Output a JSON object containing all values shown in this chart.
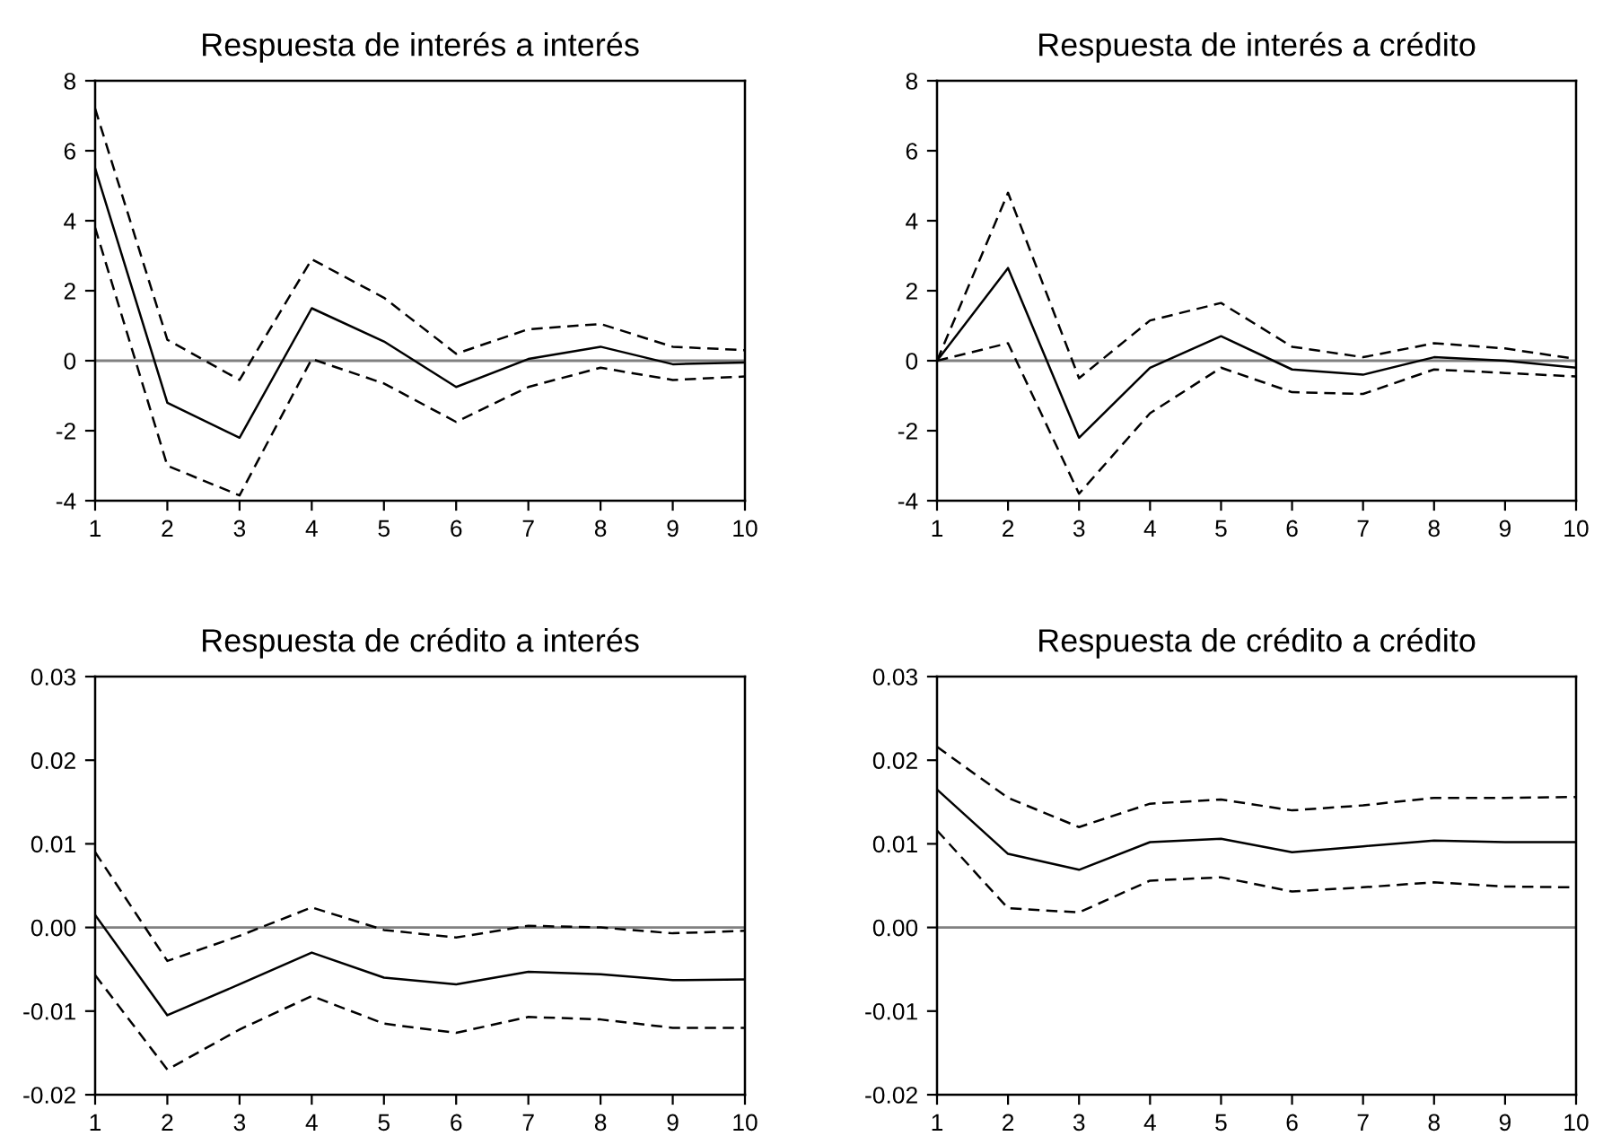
{
  "chart_data": [
    {
      "type": "line",
      "title": "Respuesta de interés a interés",
      "x": [
        1,
        2,
        3,
        4,
        5,
        6,
        7,
        8,
        9,
        10
      ],
      "xlim": [
        1,
        10
      ],
      "xticks": [
        1,
        2,
        3,
        4,
        5,
        6,
        7,
        8,
        9,
        10
      ],
      "ylim": [
        -4,
        8
      ],
      "yticks": [
        -4,
        -2,
        0,
        2,
        4,
        6,
        8
      ],
      "grid": false,
      "legend": false,
      "ref_lines": [
        {
          "axis": "y",
          "value": 0,
          "color": "#808080"
        }
      ],
      "series": [
        {
          "color": "#000000",
          "line_style": "solid",
          "values": [
            5.5,
            -1.2,
            -2.2,
            1.5,
            0.55,
            -0.75,
            0.05,
            0.4,
            -0.1,
            -0.05
          ]
        },
        {
          "color": "#000000",
          "line_style": "dashed",
          "values": [
            7.2,
            0.6,
            -0.55,
            2.9,
            1.8,
            0.2,
            0.9,
            1.05,
            0.4,
            0.3
          ]
        },
        {
          "color": "#000000",
          "line_style": "dashed",
          "values": [
            3.8,
            -3.0,
            -3.85,
            0.05,
            -0.65,
            -1.75,
            -0.75,
            -0.2,
            -0.55,
            -0.45
          ]
        }
      ]
    },
    {
      "type": "line",
      "title": "Respuesta de interés a crédito",
      "x": [
        1,
        2,
        3,
        4,
        5,
        6,
        7,
        8,
        9,
        10
      ],
      "xlim": [
        1,
        10
      ],
      "xticks": [
        1,
        2,
        3,
        4,
        5,
        6,
        7,
        8,
        9,
        10
      ],
      "ylim": [
        -4,
        8
      ],
      "yticks": [
        -4,
        -2,
        0,
        2,
        4,
        6,
        8
      ],
      "grid": false,
      "legend": false,
      "ref_lines": [
        {
          "axis": "y",
          "value": 0,
          "color": "#808080"
        }
      ],
      "series": [
        {
          "color": "#000000",
          "line_style": "solid",
          "values": [
            0,
            2.65,
            -2.2,
            -0.2,
            0.7,
            -0.25,
            -0.4,
            0.1,
            0,
            -0.2
          ]
        },
        {
          "color": "#000000",
          "line_style": "dashed",
          "values": [
            0,
            4.8,
            -0.5,
            1.15,
            1.65,
            0.4,
            0.1,
            0.5,
            0.35,
            0.05
          ]
        },
        {
          "color": "#000000",
          "line_style": "dashed",
          "values": [
            0,
            0.5,
            -3.8,
            -1.5,
            -0.2,
            -0.9,
            -0.95,
            -0.25,
            -0.35,
            -0.45
          ]
        }
      ]
    },
    {
      "type": "line",
      "title": "Respuesta de crédito a interés",
      "x": [
        1,
        2,
        3,
        4,
        5,
        6,
        7,
        8,
        9,
        10
      ],
      "xlim": [
        1,
        10
      ],
      "xticks": [
        1,
        2,
        3,
        4,
        5,
        6,
        7,
        8,
        9,
        10
      ],
      "ylim": [
        -0.02,
        0.03
      ],
      "yticks": [
        {
          "value": -0.02,
          "label": "-0.02"
        },
        {
          "value": -0.01,
          "label": "-0.01"
        },
        {
          "value": 0,
          "label": "0.00"
        },
        {
          "value": 0.01,
          "label": "0.01"
        },
        {
          "value": 0.02,
          "label": "0.02"
        },
        {
          "value": 0.03,
          "label": "0.03"
        }
      ],
      "grid": false,
      "legend": false,
      "ref_lines": [
        {
          "axis": "y",
          "value": 0,
          "color": "#808080"
        }
      ],
      "series": [
        {
          "color": "#000000",
          "line_style": "solid",
          "values": [
            0.0015,
            -0.0105,
            -0.0068,
            -0.003,
            -0.006,
            -0.0068,
            -0.0053,
            -0.0056,
            -0.0063,
            -0.0062
          ]
        },
        {
          "color": "#000000",
          "line_style": "dashed",
          "values": [
            0.009,
            -0.004,
            -0.001,
            0.0024,
            -0.0003,
            -0.0012,
            0.0002,
            0,
            -0.0007,
            -0.0004
          ]
        },
        {
          "color": "#000000",
          "line_style": "dashed",
          "values": [
            -0.0057,
            -0.017,
            -0.0122,
            -0.0082,
            -0.0115,
            -0.0126,
            -0.0107,
            -0.011,
            -0.012,
            -0.012
          ]
        }
      ]
    },
    {
      "type": "line",
      "title": "Respuesta de crédito a crédito",
      "x": [
        1,
        2,
        3,
        4,
        5,
        6,
        7,
        8,
        9,
        10
      ],
      "xlim": [
        1,
        10
      ],
      "xticks": [
        1,
        2,
        3,
        4,
        5,
        6,
        7,
        8,
        9,
        10
      ],
      "ylim": [
        -0.02,
        0.03
      ],
      "yticks": [
        {
          "value": -0.02,
          "label": "-0.02"
        },
        {
          "value": -0.01,
          "label": "-0.01"
        },
        {
          "value": 0,
          "label": "0.00"
        },
        {
          "value": 0.01,
          "label": "0.01"
        },
        {
          "value": 0.02,
          "label": "0.02"
        },
        {
          "value": 0.03,
          "label": "0.03"
        }
      ],
      "grid": false,
      "legend": false,
      "ref_lines": [
        {
          "axis": "y",
          "value": 0,
          "color": "#808080"
        }
      ],
      "series": [
        {
          "color": "#000000",
          "line_style": "solid",
          "values": [
            0.0165,
            0.0088,
            0.0069,
            0.0102,
            0.0106,
            0.009,
            0.0097,
            0.0104,
            0.0102,
            0.0102
          ]
        },
        {
          "color": "#000000",
          "line_style": "dashed",
          "values": [
            0.0216,
            0.0155,
            0.012,
            0.0148,
            0.0153,
            0.014,
            0.0146,
            0.0155,
            0.0155,
            0.0156
          ]
        },
        {
          "color": "#000000",
          "line_style": "dashed",
          "values": [
            0.0116,
            0.0023,
            0.0018,
            0.0056,
            0.006,
            0.0043,
            0.0048,
            0.0054,
            0.0049,
            0.0048
          ]
        }
      ]
    }
  ]
}
